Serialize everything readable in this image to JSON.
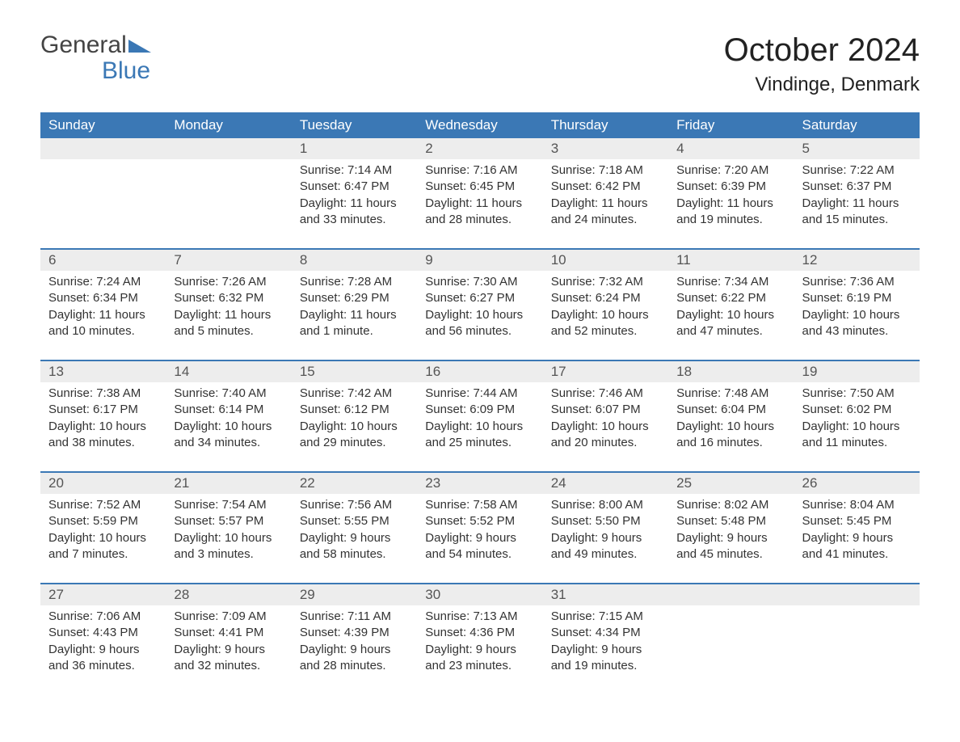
{
  "logo": {
    "line1": "General",
    "line2": "Blue",
    "accent_color": "#3b78b5",
    "text_color": "#444444"
  },
  "title": "October 2024",
  "location": "Vindinge, Denmark",
  "colors": {
    "header_bg": "#3b78b5",
    "header_text": "#ffffff",
    "daynum_bg": "#ededed",
    "daynum_text": "#555555",
    "border": "#3b78b5",
    "body_text": "#333333"
  },
  "weekdays": [
    "Sunday",
    "Monday",
    "Tuesday",
    "Wednesday",
    "Thursday",
    "Friday",
    "Saturday"
  ],
  "weeks": [
    [
      null,
      null,
      {
        "n": "1",
        "sunrise": "7:14 AM",
        "sunset": "6:47 PM",
        "daylight": "11 hours and 33 minutes."
      },
      {
        "n": "2",
        "sunrise": "7:16 AM",
        "sunset": "6:45 PM",
        "daylight": "11 hours and 28 minutes."
      },
      {
        "n": "3",
        "sunrise": "7:18 AM",
        "sunset": "6:42 PM",
        "daylight": "11 hours and 24 minutes."
      },
      {
        "n": "4",
        "sunrise": "7:20 AM",
        "sunset": "6:39 PM",
        "daylight": "11 hours and 19 minutes."
      },
      {
        "n": "5",
        "sunrise": "7:22 AM",
        "sunset": "6:37 PM",
        "daylight": "11 hours and 15 minutes."
      }
    ],
    [
      {
        "n": "6",
        "sunrise": "7:24 AM",
        "sunset": "6:34 PM",
        "daylight": "11 hours and 10 minutes."
      },
      {
        "n": "7",
        "sunrise": "7:26 AM",
        "sunset": "6:32 PM",
        "daylight": "11 hours and 5 minutes."
      },
      {
        "n": "8",
        "sunrise": "7:28 AM",
        "sunset": "6:29 PM",
        "daylight": "11 hours and 1 minute."
      },
      {
        "n": "9",
        "sunrise": "7:30 AM",
        "sunset": "6:27 PM",
        "daylight": "10 hours and 56 minutes."
      },
      {
        "n": "10",
        "sunrise": "7:32 AM",
        "sunset": "6:24 PM",
        "daylight": "10 hours and 52 minutes."
      },
      {
        "n": "11",
        "sunrise": "7:34 AM",
        "sunset": "6:22 PM",
        "daylight": "10 hours and 47 minutes."
      },
      {
        "n": "12",
        "sunrise": "7:36 AM",
        "sunset": "6:19 PM",
        "daylight": "10 hours and 43 minutes."
      }
    ],
    [
      {
        "n": "13",
        "sunrise": "7:38 AM",
        "sunset": "6:17 PM",
        "daylight": "10 hours and 38 minutes."
      },
      {
        "n": "14",
        "sunrise": "7:40 AM",
        "sunset": "6:14 PM",
        "daylight": "10 hours and 34 minutes."
      },
      {
        "n": "15",
        "sunrise": "7:42 AM",
        "sunset": "6:12 PM",
        "daylight": "10 hours and 29 minutes."
      },
      {
        "n": "16",
        "sunrise": "7:44 AM",
        "sunset": "6:09 PM",
        "daylight": "10 hours and 25 minutes."
      },
      {
        "n": "17",
        "sunrise": "7:46 AM",
        "sunset": "6:07 PM",
        "daylight": "10 hours and 20 minutes."
      },
      {
        "n": "18",
        "sunrise": "7:48 AM",
        "sunset": "6:04 PM",
        "daylight": "10 hours and 16 minutes."
      },
      {
        "n": "19",
        "sunrise": "7:50 AM",
        "sunset": "6:02 PM",
        "daylight": "10 hours and 11 minutes."
      }
    ],
    [
      {
        "n": "20",
        "sunrise": "7:52 AM",
        "sunset": "5:59 PM",
        "daylight": "10 hours and 7 minutes."
      },
      {
        "n": "21",
        "sunrise": "7:54 AM",
        "sunset": "5:57 PM",
        "daylight": "10 hours and 3 minutes."
      },
      {
        "n": "22",
        "sunrise": "7:56 AM",
        "sunset": "5:55 PM",
        "daylight": "9 hours and 58 minutes."
      },
      {
        "n": "23",
        "sunrise": "7:58 AM",
        "sunset": "5:52 PM",
        "daylight": "9 hours and 54 minutes."
      },
      {
        "n": "24",
        "sunrise": "8:00 AM",
        "sunset": "5:50 PM",
        "daylight": "9 hours and 49 minutes."
      },
      {
        "n": "25",
        "sunrise": "8:02 AM",
        "sunset": "5:48 PM",
        "daylight": "9 hours and 45 minutes."
      },
      {
        "n": "26",
        "sunrise": "8:04 AM",
        "sunset": "5:45 PM",
        "daylight": "9 hours and 41 minutes."
      }
    ],
    [
      {
        "n": "27",
        "sunrise": "7:06 AM",
        "sunset": "4:43 PM",
        "daylight": "9 hours and 36 minutes."
      },
      {
        "n": "28",
        "sunrise": "7:09 AM",
        "sunset": "4:41 PM",
        "daylight": "9 hours and 32 minutes."
      },
      {
        "n": "29",
        "sunrise": "7:11 AM",
        "sunset": "4:39 PM",
        "daylight": "9 hours and 28 minutes."
      },
      {
        "n": "30",
        "sunrise": "7:13 AM",
        "sunset": "4:36 PM",
        "daylight": "9 hours and 23 minutes."
      },
      {
        "n": "31",
        "sunrise": "7:15 AM",
        "sunset": "4:34 PM",
        "daylight": "9 hours and 19 minutes."
      },
      null,
      null
    ]
  ],
  "labels": {
    "sunrise": "Sunrise:",
    "sunset": "Sunset:",
    "daylight": "Daylight:"
  }
}
